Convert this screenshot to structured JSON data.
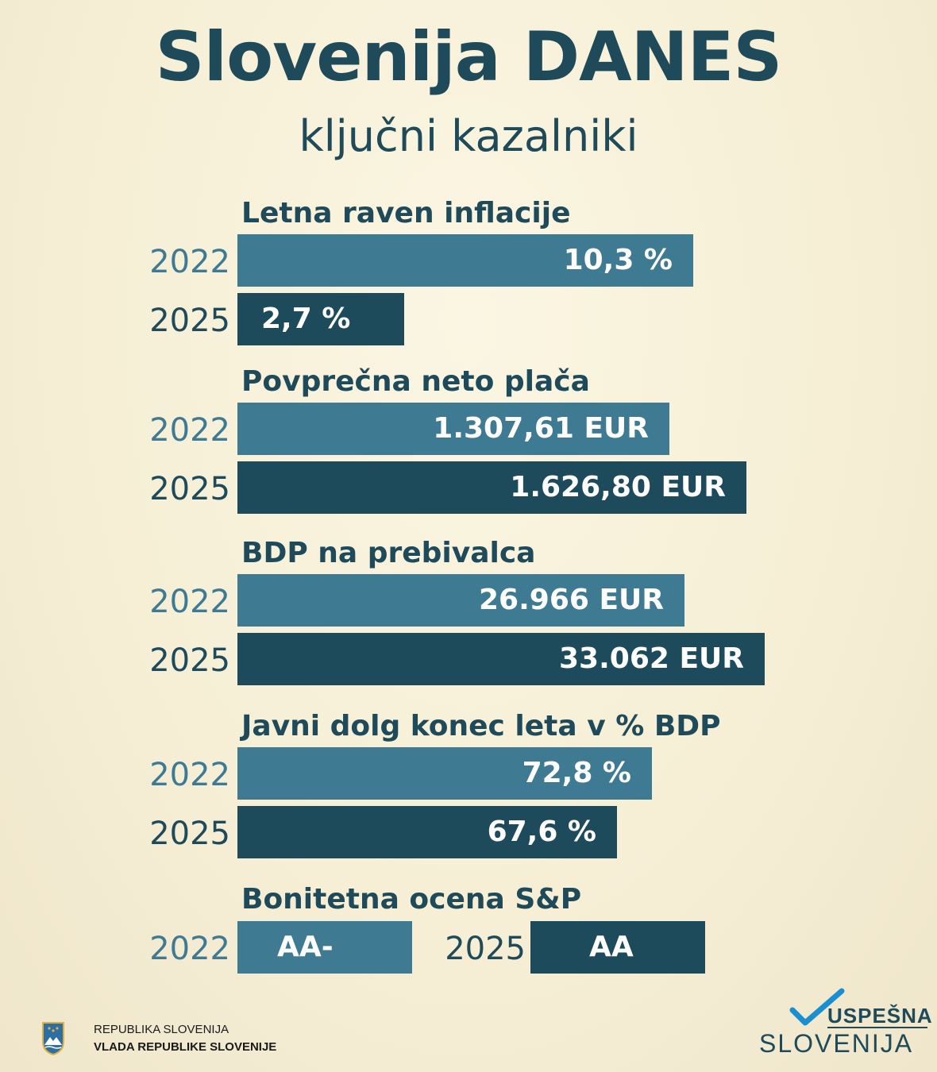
{
  "title": "Slovenija DANES",
  "subtitle": "ključni kazalniki",
  "colors": {
    "bar_2022": "#3f7a93",
    "bar_2025": "#1d4b5c",
    "text": "#1e4a5a"
  },
  "chart_data": {
    "type": "bar",
    "orientation": "horizontal",
    "panels": [
      {
        "heading": "Letna raven inflacije",
        "bars": [
          {
            "year": "2022",
            "value": 10.3,
            "label": "10,3 %"
          },
          {
            "year": "2025",
            "value": 2.7,
            "label": "2,7 %"
          }
        ]
      },
      {
        "heading": "Povprečna neto plača",
        "bars": [
          {
            "year": "2022",
            "value": 1307.61,
            "label": "1.307,61 EUR"
          },
          {
            "year": "2025",
            "value": 1626.8,
            "label": "1.626,80 EUR"
          }
        ]
      },
      {
        "heading": "BDP na prebivalca",
        "bars": [
          {
            "year": "2022",
            "value": 26966,
            "label": "26.966 EUR"
          },
          {
            "year": "2025",
            "value": 33062,
            "label": "33.062 EUR"
          }
        ]
      },
      {
        "heading": "Javni dolg konec leta v % BDP",
        "bars": [
          {
            "year": "2022",
            "value": 72.8,
            "label": "72,8 %"
          },
          {
            "year": "2025",
            "value": 67.6,
            "label": "67,6 %"
          }
        ]
      }
    ],
    "rating": {
      "heading": "Bonitetna ocena S&P",
      "items": [
        {
          "year": "2022",
          "label": "AA-"
        },
        {
          "year": "2025",
          "label": "AA"
        }
      ]
    }
  },
  "footer": {
    "government_line1": "REPUBLIKA SLOVENIJA",
    "government_line2": "VLADA REPUBLIKE SLOVENIJE",
    "brand_top": "USPEŠNA",
    "brand_bottom": "SLOVENIJA"
  }
}
